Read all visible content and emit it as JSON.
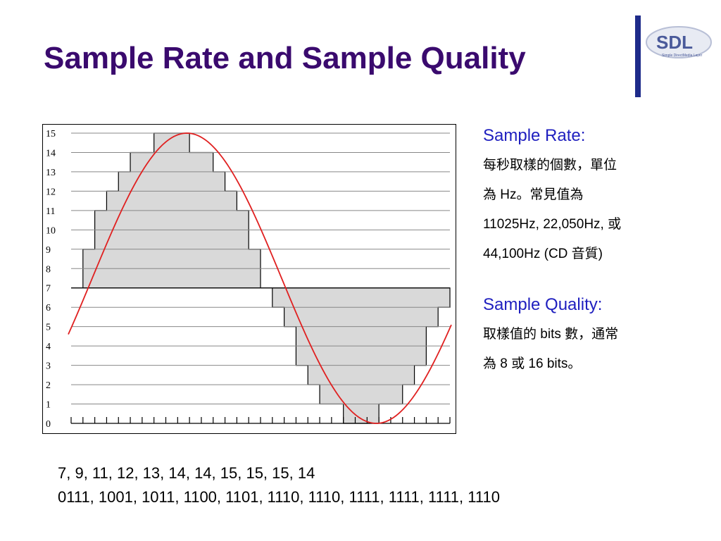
{
  "title": "Sample Rate and Sample Quality",
  "logo": {
    "text": "SDL",
    "subtext": "Simple DirectMedia Layer",
    "colors": {
      "bar": "#1e2b8a",
      "text": "#4a5a9a"
    }
  },
  "sample_rate": {
    "heading": "Sample Rate:",
    "lines": [
      "每秒取樣的個數，單位",
      "為 Hz。常見值為",
      "11025Hz, 22,050Hz, 或",
      "44,100Hz (CD 音質)"
    ]
  },
  "sample_quality": {
    "heading": "Sample Quality:",
    "lines": [
      "取樣值的 bits 數，通常",
      "為 8 或 16 bits。"
    ]
  },
  "samples_decimal": "7, 9, 11, 12, 13, 14, 14, 15, 15, 15, 14",
  "samples_binary": "0111, 1001, 1011, 1100, 1101, 1110, 1110, 1111, 1111, 1111, 1110",
  "chart_data": {
    "type": "line",
    "y_ticks": [
      "0",
      "1",
      "2",
      "3",
      "4",
      "5",
      "6",
      "7",
      "8",
      "9",
      "10",
      "11",
      "12",
      "13",
      "14",
      "15"
    ],
    "ylim": [
      0,
      15
    ],
    "x_samples": 32,
    "quantized_series": {
      "values": [
        7,
        9,
        11,
        12,
        13,
        14,
        14,
        15,
        15,
        15,
        14,
        14,
        13,
        12,
        11,
        9,
        7,
        6,
        5,
        3,
        2,
        1,
        1,
        0,
        0,
        0,
        1,
        1,
        2,
        3,
        5,
        6
      ]
    },
    "colors": {
      "wave": "#e02020",
      "fill": "#d9d9d9",
      "grid": "#888888"
    }
  }
}
